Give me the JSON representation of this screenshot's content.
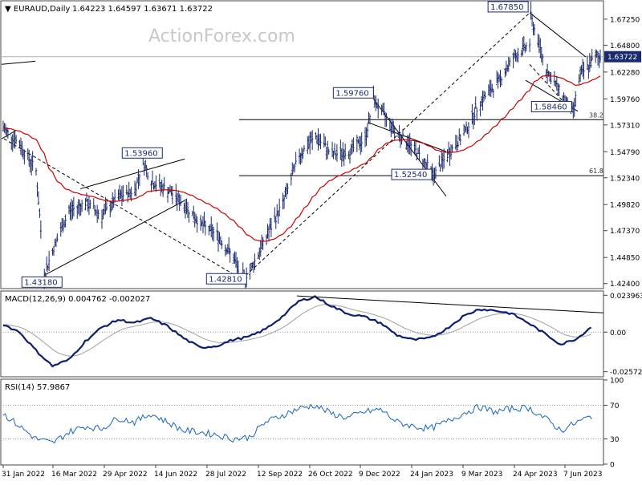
{
  "header": {
    "symbol": "EURAUD,Daily",
    "ohlc": "1.64223 1.64597 1.63671 1.63722",
    "watermark": "ActionForex.com"
  },
  "chart_data": [
    {
      "type": "candlestick",
      "panel": "price",
      "y_ticks": [
        1.6725,
        1.648,
        1.6228,
        1.5976,
        1.5731,
        1.5479,
        1.5234,
        1.4982,
        1.4737,
        1.4485,
        1.424
      ],
      "ylim": [
        1.42,
        1.689
      ],
      "current_price": "1.63722",
      "moving_average_color": "#cc0000",
      "bar_color": "#1a2a6c",
      "pivot_labels": [
        {
          "text": "1.43180",
          "date": "2022-03-07",
          "value": 1.4318
        },
        {
          "text": "1.53960",
          "date": "2022-05-30",
          "value": 1.5396
        },
        {
          "text": "1.42810",
          "date": "2022-08-22",
          "value": 1.4281
        },
        {
          "text": "1.59760",
          "date": "2022-12-12",
          "value": 1.5976
        },
        {
          "text": "1.52540",
          "date": "2023-02-01",
          "value": 1.5254
        },
        {
          "text": "1.67850",
          "date": "2023-04-24",
          "value": 1.6785
        },
        {
          "text": "1.58460",
          "date": "2023-05-31",
          "value": 1.5846
        }
      ],
      "fib_levels": [
        {
          "label": "38.2",
          "value": 1.578
        },
        {
          "label": "61.8",
          "value": 1.5254
        }
      ],
      "x_dates": [
        "2022-01-31",
        "2022-02-14",
        "2022-02-28",
        "2022-03-14",
        "2022-03-28",
        "2022-04-11",
        "2022-04-25",
        "2022-05-09",
        "2022-05-23",
        "2022-06-06",
        "2022-06-20",
        "2022-07-04",
        "2022-07-18",
        "2022-08-01",
        "2022-08-15",
        "2022-08-29",
        "2022-09-12",
        "2022-09-26",
        "2022-10-10",
        "2022-10-24",
        "2022-11-07",
        "2022-11-21",
        "2022-12-05",
        "2022-12-19",
        "2023-01-02",
        "2023-01-16",
        "2023-01-30",
        "2023-02-13",
        "2023-02-27",
        "2023-03-13",
        "2023-03-27",
        "2023-04-10",
        "2023-04-24",
        "2023-05-08",
        "2023-05-22",
        "2023-06-05",
        "2023-06-19"
      ],
      "close_approx": [
        1.57,
        1.555,
        1.53,
        1.455,
        1.492,
        1.5,
        1.488,
        1.505,
        1.512,
        1.52,
        1.512,
        1.498,
        1.48,
        1.47,
        1.448,
        1.436,
        1.468,
        1.5,
        1.545,
        1.562,
        1.545,
        1.548,
        1.56,
        1.585,
        1.565,
        1.55,
        1.53,
        1.545,
        1.565,
        1.595,
        1.612,
        1.636,
        1.65,
        1.625,
        1.6,
        1.618,
        1.637
      ]
    },
    {
      "type": "line",
      "panel": "macd",
      "title": "MACD(12,26,9) 0.004762 -0.002027",
      "y_ticks": [
        "0.023963",
        "0.00",
        "-0.025726"
      ],
      "ylim": [
        -0.0285,
        0.0262
      ],
      "series": [
        {
          "color": "#0b1f6e",
          "values": [
            0.005,
            0.0,
            -0.012,
            -0.022,
            -0.018,
            -0.006,
            0.003,
            0.008,
            0.006,
            0.009,
            0.004,
            -0.004,
            -0.01,
            -0.009,
            -0.005,
            -0.003,
            0.002,
            0.01,
            0.02,
            0.023,
            0.017,
            0.012,
            0.01,
            0.006,
            -0.002,
            -0.005,
            -0.004,
            0.002,
            0.01,
            0.015,
            0.014,
            0.012,
            0.006,
            -0.001,
            -0.008,
            -0.004,
            0.005
          ]
        }
      ]
    },
    {
      "type": "line",
      "panel": "rsi",
      "title": "RSI(14) 57.9867",
      "y_ticks": [
        "100",
        "70",
        "30",
        "0"
      ],
      "ylim": [
        0,
        100
      ],
      "levels": [
        70,
        30
      ],
      "series": [
        {
          "color": "#1565c0",
          "values": [
            60,
            45,
            30,
            25,
            38,
            45,
            42,
            55,
            50,
            60,
            50,
            40,
            38,
            35,
            30,
            32,
            50,
            58,
            66,
            70,
            60,
            55,
            62,
            65,
            50,
            45,
            42,
            50,
            60,
            68,
            62,
            66,
            67,
            55,
            40,
            50,
            58
          ]
        }
      ]
    }
  ],
  "x_labels": [
    "31 Jan 2022",
    "16 Mar 2022",
    "29 Apr 2022",
    "14 Jun 2022",
    "28 Jul 2022",
    "12 Sep 2022",
    "26 Oct 2022",
    "9 Dec 2022",
    "24 Jan 2023",
    "9 Mar 2023",
    "24 Apr 2023",
    "7 Jun 2023"
  ]
}
